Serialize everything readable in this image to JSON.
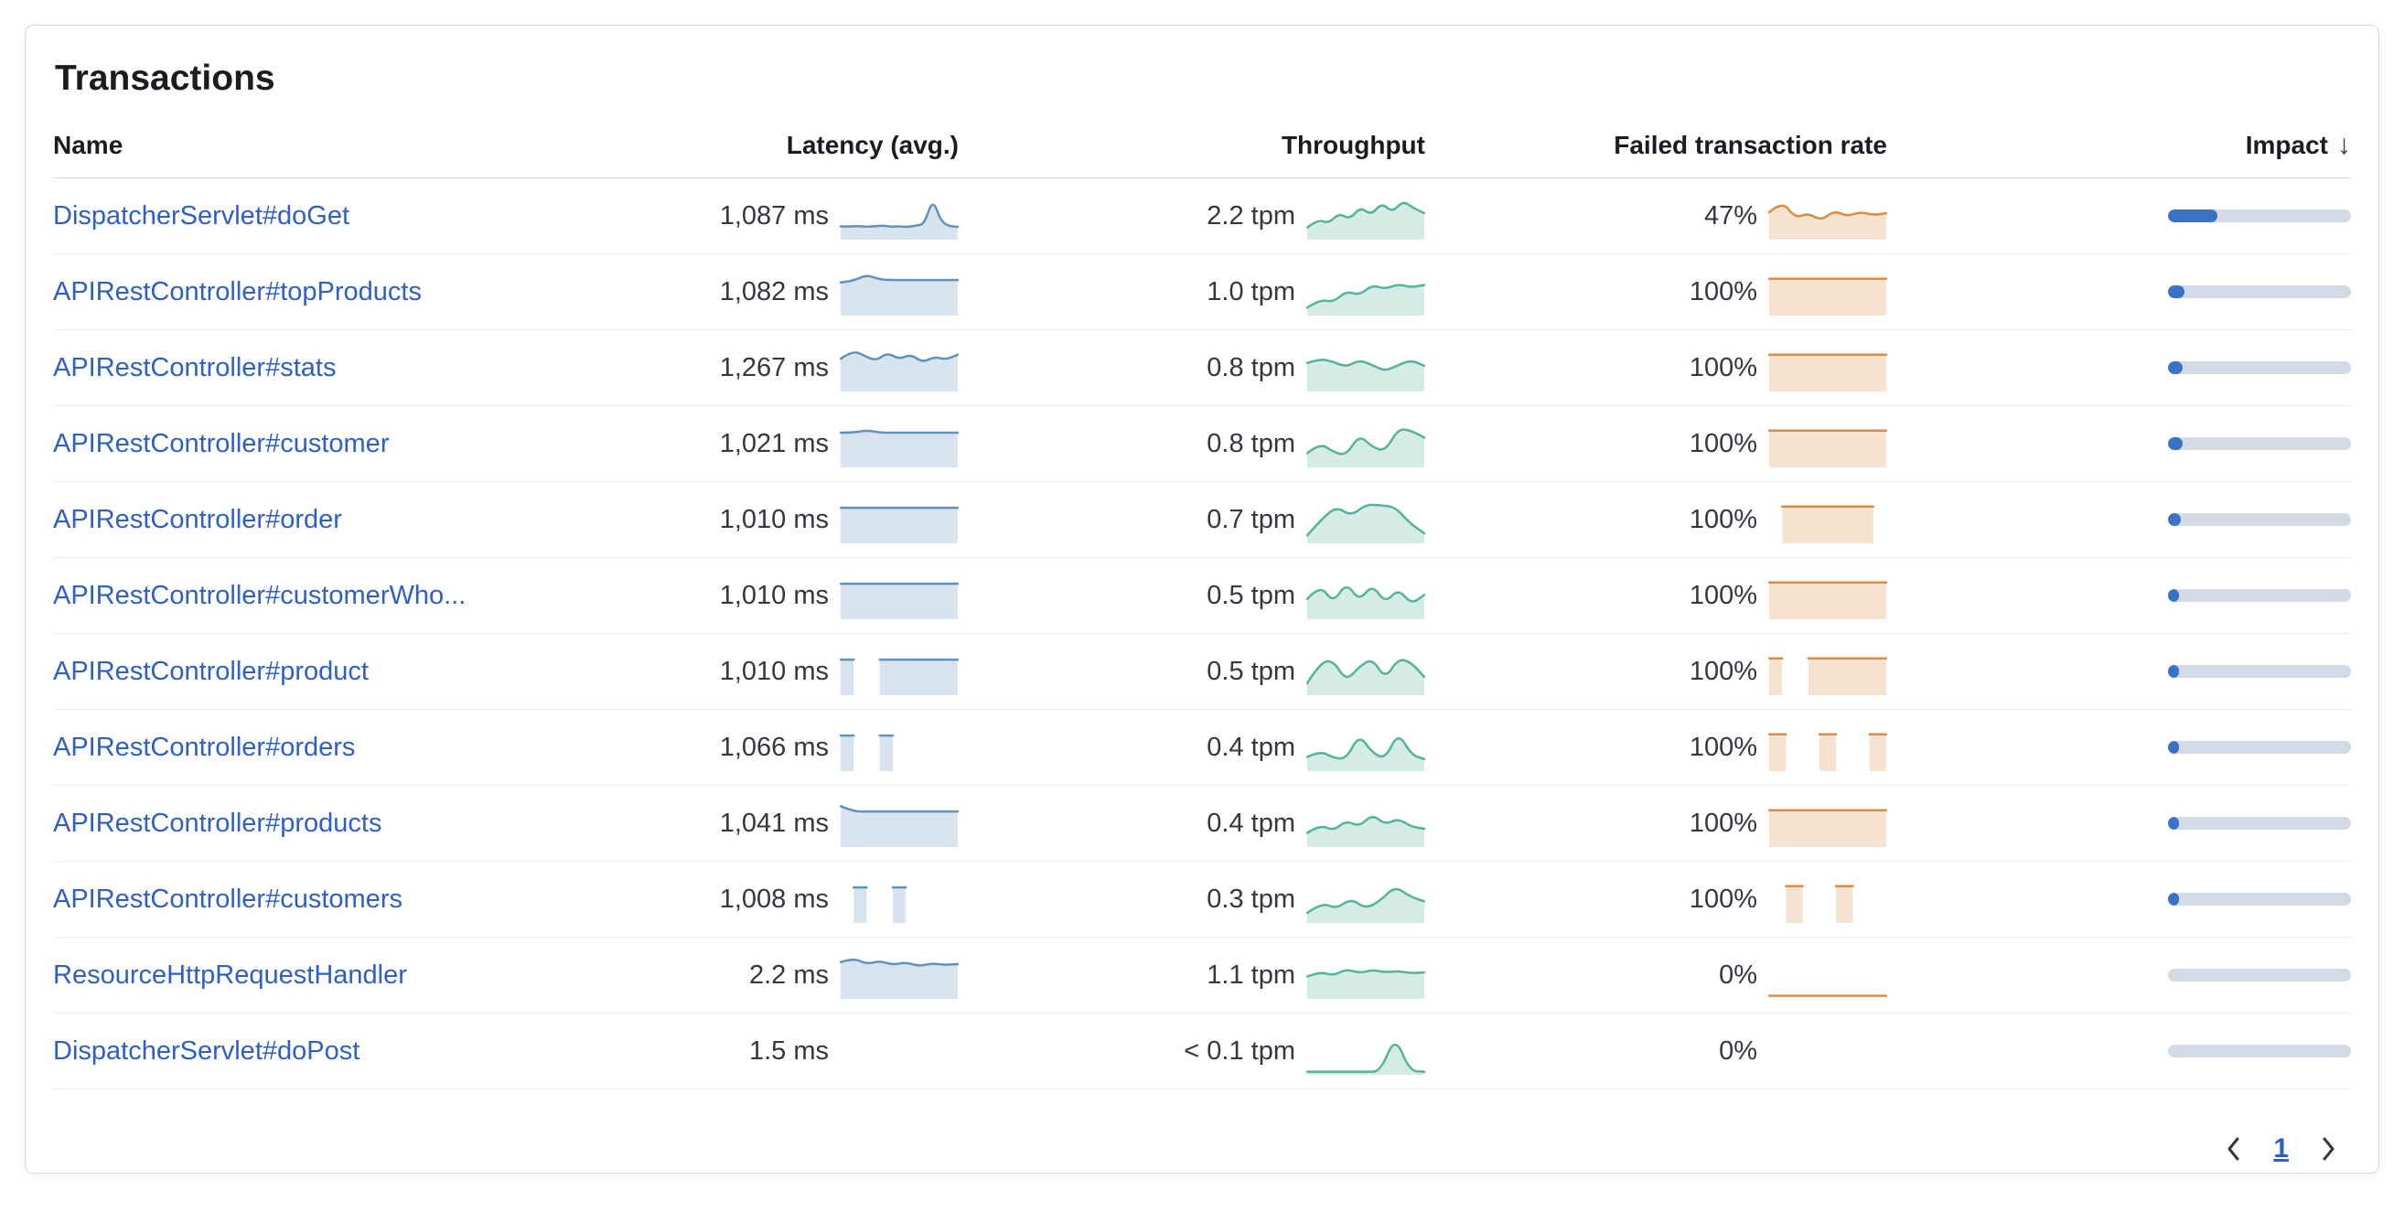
{
  "panel": {
    "title": "Transactions"
  },
  "colors": {
    "link": "#2e5fc7",
    "latency": "#6092C0",
    "throughput": "#54B399",
    "failed": "#DA8B45",
    "impact_fill": "#3a72c6",
    "impact_track": "#d3dae6"
  },
  "table": {
    "columns": [
      "Name",
      "Latency (avg.)",
      "Throughput",
      "Failed transaction rate",
      "Impact"
    ],
    "sort_icon": "↓",
    "sorted_by": "Impact",
    "rows": [
      {
        "name": "DispatcherServlet#doGet",
        "latency": "1,087 ms",
        "latency_spark": [
          0.28,
          0.27,
          0.29,
          0.27,
          0.28,
          0.3,
          0.27,
          0.28,
          0.26,
          0.3,
          0.33,
          0.95,
          0.4,
          0.28,
          0.27
        ],
        "throughput": "2.2 tpm",
        "throughput_spark": [
          0.25,
          0.45,
          0.35,
          0.6,
          0.45,
          0.75,
          0.55,
          0.85,
          0.62,
          0.9,
          0.72,
          0.6
        ],
        "failed_rate": "47%",
        "failed_spark": [
          0.62,
          0.9,
          0.48,
          0.6,
          0.42,
          0.66,
          0.52,
          0.63,
          0.55,
          0.6
        ],
        "failed_fill": true,
        "impact_pct": 27
      },
      {
        "name": "APIRestController#topProducts",
        "latency": "1,082 ms",
        "latency_spark": [
          0.76,
          0.8,
          0.95,
          0.83,
          0.82,
          0.82,
          0.82,
          0.82,
          0.82,
          0.82
        ],
        "throughput": "1.0 tpm",
        "throughput_spark": [
          0.15,
          0.35,
          0.28,
          0.55,
          0.45,
          0.7,
          0.6,
          0.72,
          0.64,
          0.7
        ],
        "failed_rate": "100%",
        "failed_spark": [
          0.85,
          0.85,
          0.85,
          0.85,
          0.85,
          0.85,
          0.85,
          0.85,
          0.85,
          0.85
        ],
        "failed_fill": true,
        "impact_pct": 9
      },
      {
        "name": "APIRestController#stats",
        "latency": "1,267 ms",
        "latency_spark": [
          0.75,
          0.95,
          0.83,
          0.7,
          0.9,
          0.74,
          0.86,
          0.66,
          0.8,
          0.73,
          0.85
        ],
        "throughput": "0.8 tpm",
        "throughput_spark": [
          0.65,
          0.75,
          0.68,
          0.55,
          0.72,
          0.6,
          0.45,
          0.6,
          0.72,
          0.58
        ],
        "failed_rate": "100%",
        "failed_spark": [
          0.85,
          0.85,
          0.85,
          0.85,
          0.85,
          0.85,
          0.85,
          0.85,
          0.85,
          0.85
        ],
        "failed_fill": true,
        "impact_pct": 8
      },
      {
        "name": "APIRestController#customer",
        "latency": "1,021 ms",
        "latency_spark": [
          0.8,
          0.8,
          0.86,
          0.8,
          0.8,
          0.8,
          0.8,
          0.8,
          0.8,
          0.8
        ],
        "throughput": "0.8 tpm",
        "throughput_spark": [
          0.3,
          0.55,
          0.33,
          0.25,
          0.75,
          0.45,
          0.35,
          0.9,
          0.85,
          0.68
        ],
        "failed_rate": "100%",
        "failed_spark": [
          0.85,
          0.85,
          0.85,
          0.85,
          0.85,
          0.85,
          0.85,
          0.85,
          0.85,
          0.85
        ],
        "failed_fill": true,
        "impact_pct": 8
      },
      {
        "name": "APIRestController#order",
        "latency": "1,010 ms",
        "latency_spark": [
          0.82,
          0.82,
          0.82,
          0.82,
          0.82,
          0.82,
          0.82,
          0.82,
          0.82,
          0.82
        ],
        "throughput": "0.7 tpm",
        "throughput_spark": [
          0.15,
          0.55,
          0.85,
          0.62,
          0.9,
          0.88,
          0.84,
          0.45,
          0.2
        ],
        "failed_rate": "100%",
        "failed_spark": [
          null,
          0.85,
          0.85,
          0.85,
          0.85,
          0.85,
          0.85,
          0.85,
          0.85,
          null
        ],
        "failed_fill": true,
        "impact_pct": 7
      },
      {
        "name": "APIRestController#customerWho...",
        "latency": "1,010 ms",
        "latency_spark": [
          0.82,
          0.82,
          0.82,
          0.82,
          0.82,
          0.82,
          0.82,
          0.82,
          0.82,
          0.82
        ],
        "throughput": "0.5 tpm",
        "throughput_spark": [
          0.45,
          0.8,
          0.35,
          0.85,
          0.4,
          0.8,
          0.35,
          0.7,
          0.32,
          0.55
        ],
        "failed_rate": "100%",
        "failed_spark": [
          0.85,
          0.85,
          0.85,
          0.85,
          0.85,
          0.85,
          0.85,
          0.85,
          0.85,
          0.85
        ],
        "failed_fill": true,
        "impact_pct": 6
      },
      {
        "name": "APIRestController#product",
        "latency": "1,010 ms",
        "latency_spark": [
          0.82,
          0.82,
          null,
          0.82,
          0.82,
          0.82,
          0.82,
          0.82,
          0.82,
          0.82
        ],
        "throughput": "0.5 tpm",
        "throughput_spark": [
          0.25,
          0.75,
          0.8,
          0.3,
          0.65,
          0.85,
          0.35,
          0.85,
          0.75,
          0.4
        ],
        "failed_rate": "100%",
        "failed_spark": [
          0.85,
          0.85,
          null,
          0.85,
          0.85,
          0.85,
          0.85,
          0.85,
          0.85,
          0.85
        ],
        "failed_fill": true,
        "impact_pct": 6
      },
      {
        "name": "APIRestController#orders",
        "latency": "1,066 ms",
        "latency_spark": [
          0.82,
          0.82,
          null,
          0.82,
          0.82,
          null,
          null,
          null,
          null,
          null
        ],
        "throughput": "0.4 tpm",
        "throughput_spark": [
          0.3,
          0.45,
          0.28,
          0.25,
          0.85,
          0.4,
          0.25,
          0.9,
          0.35,
          0.25
        ],
        "failed_rate": "100%",
        "failed_spark": [
          0.85,
          0.85,
          null,
          0.85,
          0.85,
          null,
          0.85,
          0.85
        ],
        "failed_fill": true,
        "impact_pct": 5
      },
      {
        "name": "APIRestController#products",
        "latency": "1,041 ms",
        "latency_spark": [
          0.95,
          0.82,
          0.82,
          0.82,
          0.82,
          0.82,
          0.82,
          0.82,
          0.82,
          0.82
        ],
        "throughput": "0.4 tpm",
        "throughput_spark": [
          0.3,
          0.5,
          0.35,
          0.6,
          0.45,
          0.75,
          0.5,
          0.65,
          0.45,
          0.4
        ],
        "failed_rate": "100%",
        "failed_spark": [
          0.85,
          0.85,
          0.85,
          0.85,
          0.85,
          0.85,
          0.85,
          0.85,
          0.85,
          0.85
        ],
        "failed_fill": true,
        "impact_pct": 5
      },
      {
        "name": "APIRestController#customers",
        "latency": "1,008 ms",
        "latency_spark": [
          null,
          0.82,
          0.82,
          null,
          0.82,
          0.82,
          null,
          null,
          null,
          null
        ],
        "throughput": "0.3 tpm",
        "throughput_spark": [
          0.2,
          0.45,
          0.3,
          0.55,
          0.3,
          0.5,
          0.85,
          0.6,
          0.48
        ],
        "failed_rate": "100%",
        "failed_spark": [
          null,
          0.85,
          0.85,
          null,
          0.85,
          0.85,
          null,
          null
        ],
        "failed_fill": true,
        "impact_pct": 4
      },
      {
        "name": "ResourceHttpRequestHandler",
        "latency": "2.2 ms",
        "latency_spark": [
          0.85,
          0.95,
          0.8,
          0.88,
          0.78,
          0.85,
          0.75,
          0.82,
          0.78,
          0.8
        ],
        "throughput": "1.1 tpm",
        "throughput_spark": [
          0.5,
          0.62,
          0.52,
          0.68,
          0.58,
          0.66,
          0.6,
          0.63,
          0.58,
          0.6
        ],
        "failed_rate": "0%",
        "failed_spark": [
          0.03,
          0.03,
          0.03,
          0.03,
          0.03,
          0.03,
          0.03,
          0.03
        ],
        "failed_fill": false,
        "impact_pct": 0
      },
      {
        "name": "DispatcherServlet#doPost",
        "latency": "1.5 ms",
        "latency_spark": [],
        "throughput": "< 0.1 tpm",
        "throughput_spark": [
          0.03,
          0.03,
          0.03,
          0.03,
          0.03,
          0.03,
          0.9,
          0.05,
          0.03
        ],
        "failed_rate": "0%",
        "failed_spark": [],
        "failed_fill": false,
        "impact_pct": 0
      }
    ]
  },
  "pagination": {
    "page": "1",
    "prev_icon": "chevron-left",
    "next_icon": "chevron-right"
  }
}
